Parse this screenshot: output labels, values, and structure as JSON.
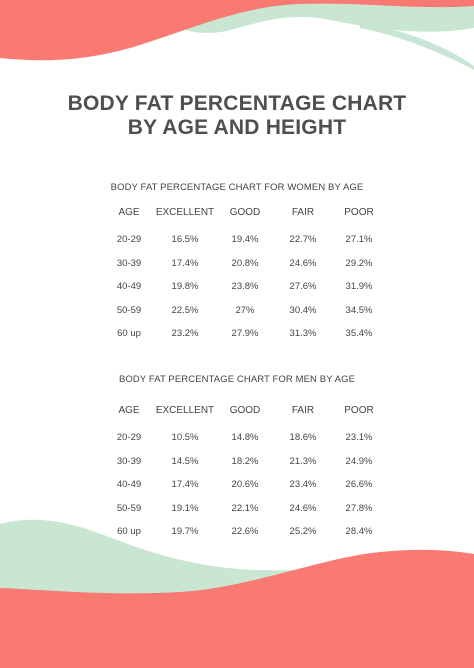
{
  "title": {
    "line1": "BODY FAT PERCENTAGE CHART",
    "line2": "BY AGE AND HEIGHT"
  },
  "colors": {
    "coral": "#F87A72",
    "mint": "#C9E6D3",
    "text": "#4a4a4a"
  },
  "women": {
    "heading": "BODY FAT PERCENTAGE CHART FOR WOMEN BY AGE",
    "columns": [
      "AGE",
      "EXCELLENT",
      "GOOD",
      "FAIR",
      "POOR"
    ],
    "rows": [
      [
        "20-29",
        "16.5%",
        "19.4%",
        "22.7%",
        "27.1%"
      ],
      [
        "30-39",
        "17.4%",
        "20.8%",
        "24.6%",
        "29.2%"
      ],
      [
        "40-49",
        "19.8%",
        "23.8%",
        "27.6%",
        "31.9%"
      ],
      [
        "50-59",
        "22.5%",
        "27%",
        "30.4%",
        "34.5%"
      ],
      [
        "60 up",
        "23.2%",
        "27.9%",
        "31.3%",
        "35.4%"
      ]
    ]
  },
  "men": {
    "heading": "BODY FAT PERCENTAGE CHART FOR MEN BY AGE",
    "columns": [
      "AGE",
      "EXCELLENT",
      "GOOD",
      "FAIR",
      "POOR"
    ],
    "rows": [
      [
        "20-29",
        "10.5%",
        "14.8%",
        "18.6%",
        "23.1%"
      ],
      [
        "30-39",
        "14.5%",
        "18.2%",
        "21.3%",
        "24.9%"
      ],
      [
        "40-49",
        "17.4%",
        "20.6%",
        "23.4%",
        "26.6%"
      ],
      [
        "50-59",
        "19.1%",
        "22.1%",
        "24.6%",
        "27.8%"
      ],
      [
        "60 up",
        "19.7%",
        "22.6%",
        "25.2%",
        "28.4%"
      ]
    ]
  }
}
